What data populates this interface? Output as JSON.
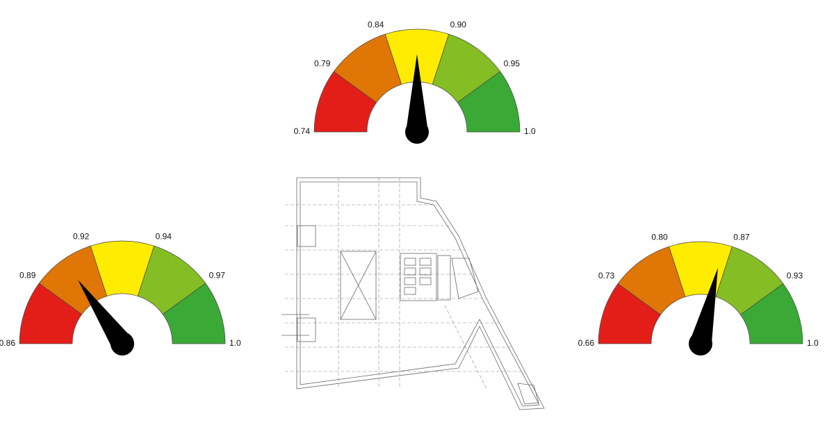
{
  "chart_data": [
    {
      "type": "gauge",
      "value": 0.87,
      "ticks": [
        0.74,
        0.79,
        0.84,
        {
          "value": 0.9,
          "label": "0.90"
        },
        0.95,
        {
          "value": 1,
          "label": "1.0"
        }
      ],
      "colors": [
        "#e31e19",
        "#e07605",
        "#ffec00",
        "#84bd24",
        "#3aa935"
      ]
    },
    {
      "type": "gauge",
      "value": 0.906,
      "ticks": [
        0.86,
        0.89,
        0.92,
        0.94,
        0.97,
        {
          "value": 1,
          "label": "1.0"
        }
      ],
      "colors": [
        "#e31e19",
        "#e07605",
        "#ffec00",
        "#84bd24",
        "#3aa935"
      ]
    },
    {
      "type": "gauge",
      "value": 0.86,
      "ticks": [
        0.66,
        0.73,
        {
          "value": 0.8,
          "label": "0.80"
        },
        0.87,
        0.93,
        {
          "value": 1,
          "label": "1.0"
        }
      ],
      "colors": [
        "#e31e19",
        "#e07605",
        "#ffec00",
        "#84bd24",
        "#3aa935"
      ]
    }
  ]
}
